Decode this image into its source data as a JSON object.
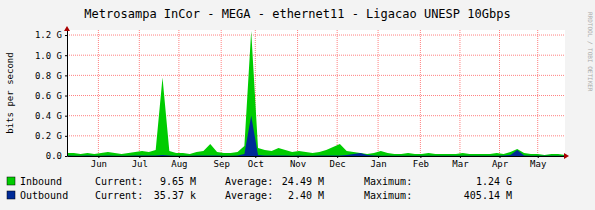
{
  "chart_data": {
    "type": "area",
    "title": "Metrosampa InCor - MEGA - ethernet11 - Ligacao UNESP 10Gbps",
    "ylabel": "bits per second",
    "watermark": "RRDTOOL / TOBI OETIKER",
    "grid": true,
    "x": [
      0,
      5,
      10,
      15,
      20,
      25,
      30,
      35,
      40,
      45,
      50,
      55,
      60,
      65,
      70,
      75,
      80,
      85,
      90,
      95,
      100,
      105,
      110,
      115,
      120,
      125,
      130,
      135,
      140,
      145,
      150,
      155,
      160,
      165,
      170,
      175,
      180,
      185,
      190,
      195,
      200,
      205,
      210,
      215,
      220,
      225,
      230,
      235,
      240,
      245,
      250,
      255,
      260,
      265,
      270,
      275,
      280,
      285,
      290,
      295,
      300,
      305,
      310,
      315,
      320,
      325,
      330,
      335,
      340,
      345,
      350,
      355,
      360,
      365
    ],
    "xlim": [
      0,
      365
    ],
    "xticks": [
      {
        "value": 23,
        "label": "Jun"
      },
      {
        "value": 53,
        "label": "Jul"
      },
      {
        "value": 82,
        "label": "Aug"
      },
      {
        "value": 113,
        "label": "Sep"
      },
      {
        "value": 138,
        "label": "Oct"
      },
      {
        "value": 169,
        "label": "Nov"
      },
      {
        "value": 198,
        "label": "Dec"
      },
      {
        "value": 228,
        "label": "Jan"
      },
      {
        "value": 259,
        "label": "Feb"
      },
      {
        "value": 288,
        "label": "Mar"
      },
      {
        "value": 317,
        "label": "Apr"
      },
      {
        "value": 345,
        "label": "May"
      }
    ],
    "ylim": [
      0,
      1.25
    ],
    "yticks": [
      {
        "value": 0,
        "label": "0.0"
      },
      {
        "value": 0.2,
        "label": "0.2 G"
      },
      {
        "value": 0.4,
        "label": "0.4 G"
      },
      {
        "value": 0.6,
        "label": "0.6 G"
      },
      {
        "value": 0.8,
        "label": "0.8 G"
      },
      {
        "value": 1.0,
        "label": "1.0 G"
      },
      {
        "value": 1.2,
        "label": "1.2 G"
      }
    ],
    "stat_labels": [
      "Current:",
      "Average:",
      "Maximum:"
    ],
    "series": [
      {
        "name": "Inbound",
        "color": "#00cc00",
        "stats": [
          "9.65 M",
          "24.49 M",
          "1.24 G"
        ],
        "values": [
          0.03,
          0.03,
          0.02,
          0.03,
          0.02,
          0.03,
          0.04,
          0.03,
          0.02,
          0.03,
          0.04,
          0.05,
          0.04,
          0.06,
          0.78,
          0.05,
          0.03,
          0.03,
          0.02,
          0.04,
          0.05,
          0.12,
          0.04,
          0.03,
          0.03,
          0.04,
          0.1,
          1.24,
          0.08,
          0.06,
          0.05,
          0.08,
          0.06,
          0.04,
          0.05,
          0.04,
          0.03,
          0.04,
          0.06,
          0.09,
          0.12,
          0.05,
          0.04,
          0.03,
          0.02,
          0.03,
          0.05,
          0.03,
          0.02,
          0.02,
          0.03,
          0.02,
          0.02,
          0.03,
          0.02,
          0.02,
          0.02,
          0.02,
          0.03,
          0.02,
          0.02,
          0.02,
          0.02,
          0.03,
          0.02,
          0.04,
          0.07,
          0.03,
          0.02,
          0.02,
          0.01,
          0.02,
          0.02,
          0.01
        ]
      },
      {
        "name": "Outbound",
        "color": "#002a97",
        "stats": [
          "35.37 k",
          "2.40 M",
          "405.14 M"
        ],
        "values": [
          0.004,
          0.003,
          0.003,
          0.004,
          0.003,
          0.003,
          0.004,
          0.003,
          0.003,
          0.003,
          0.004,
          0.005,
          0.004,
          0.005,
          0.01,
          0.004,
          0.003,
          0.003,
          0.003,
          0.004,
          0.004,
          0.006,
          0.004,
          0.003,
          0.003,
          0.004,
          0.02,
          0.4,
          0.01,
          0.005,
          0.004,
          0.005,
          0.004,
          0.003,
          0.004,
          0.003,
          0.003,
          0.004,
          0.004,
          0.005,
          0.006,
          0.01,
          0.02,
          0.03,
          0.01,
          0.004,
          0.003,
          0.003,
          0.003,
          0.003,
          0.003,
          0.003,
          0.003,
          0.003,
          0.003,
          0.003,
          0.003,
          0.003,
          0.003,
          0.003,
          0.003,
          0.003,
          0.003,
          0.003,
          0.004,
          0.01,
          0.06,
          0.005,
          0.003,
          0.003,
          0.002,
          0.002,
          0.002,
          0.002
        ]
      }
    ]
  }
}
